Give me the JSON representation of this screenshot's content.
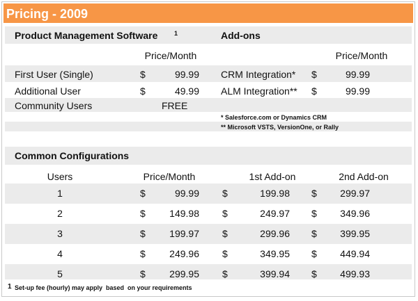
{
  "header": {
    "title": "Pricing - 2009"
  },
  "product": {
    "heading": "Product Management Software",
    "heading_sup": "1",
    "column": "Price/Month",
    "rows": [
      {
        "label": "First User (Single)",
        "currency": "$",
        "price": "99.99"
      },
      {
        "label": "Additional User",
        "currency": "$",
        "price": "49.99"
      },
      {
        "label": "Community Users",
        "price": "FREE"
      }
    ]
  },
  "addons": {
    "heading": "Add-ons",
    "column": "Price/Month",
    "rows": [
      {
        "label": "CRM Integration*",
        "currency": "$",
        "price": "99.99"
      },
      {
        "label": "ALM Integration**",
        "currency": "$",
        "price": "99.99"
      }
    ],
    "notes": [
      "* Salesforce.com or Dynamics CRM",
      "** Microsoft VSTS, VersionOne, or Rally"
    ]
  },
  "configurations": {
    "heading": "Common Configurations",
    "currency": "$",
    "columns": [
      "Users",
      "Price/Month",
      "1st Add-on",
      "2nd Add-on"
    ],
    "rows": [
      [
        "1",
        "99.99",
        "199.98",
        "299.97"
      ],
      [
        "2",
        "149.98",
        "249.97",
        "349.96"
      ],
      [
        "3",
        "199.97",
        "299.96",
        "399.95"
      ],
      [
        "4",
        "249.96",
        "349.95",
        "449.94"
      ],
      [
        "5",
        "299.95",
        "399.94",
        "499.93"
      ]
    ]
  },
  "footnote": {
    "mark": "1",
    "text": "Set-up fee (hourly) may apply  based  on your requirements"
  }
}
